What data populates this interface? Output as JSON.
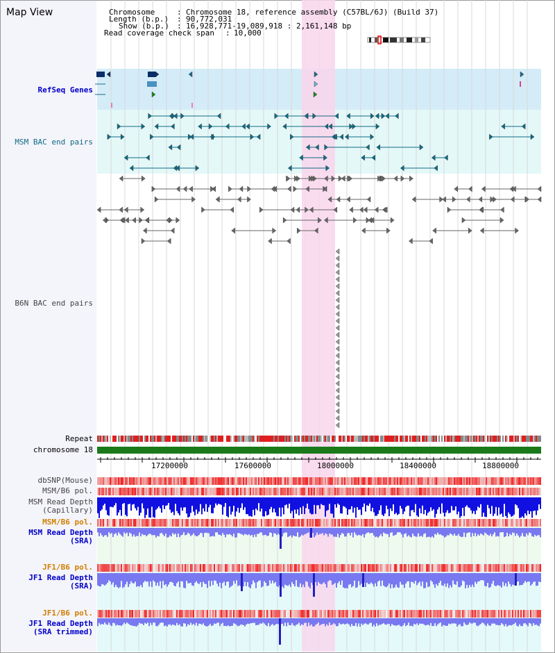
{
  "title": "Map View",
  "header": {
    "chromosome_key": "Chromosome",
    "chromosome_val": "Chromosome 18, reference assembly (C57BL/6J) (Build 37)",
    "length_key": "Length (b.p.)",
    "length_val": "90,772,031",
    "show_key": "Show (b.p.)",
    "show_val": "16,928,771-19,089,918 : 2,161,148 bp",
    "span_key": "Read coverage check span",
    "span_val": "10,000"
  },
  "tracks": {
    "refseq": "RefSeq Genes",
    "msm_bac": "MSM BAC end pairs",
    "b6n_bac": "B6N BAC end pairs",
    "repeat": "Repeat",
    "chrom": "chromosome 18",
    "dbsnp": "dbSNP(Mouse)",
    "msm_b6_pol": "MSM/B6 pol.",
    "msm_depth_cap_1": "MSM Read Depth",
    "msm_depth_cap_2": "(Capillary)",
    "msm_b6_pol_2": "MSM/B6 pol.",
    "msm_depth_sra_1": "MSM Read Depth",
    "msm_depth_sra_2": "(SRA)",
    "jf1_pol": "JF1/B6 pol.",
    "jf1_depth_1": "JF1 Read Depth",
    "jf1_depth_2": "(SRA)",
    "jf1_pol_2": "JF1/B6 pol.",
    "jf1_trim_1": "JF1 Read Depth",
    "jf1_trim_2": "(SRA trimmed)"
  },
  "axis": {
    "ticks": [
      "17200000",
      "17600000",
      "18000000",
      "18400000",
      "18800000"
    ]
  },
  "colors": {
    "highlight": "#f9d6ec",
    "refseq_bg": "#d4ecf8",
    "msm_bg": "#e4f8f8",
    "chrom_bar": "#1a7a1a",
    "depth_blue": "#1010e0",
    "depth_light": "#7878f0"
  }
}
